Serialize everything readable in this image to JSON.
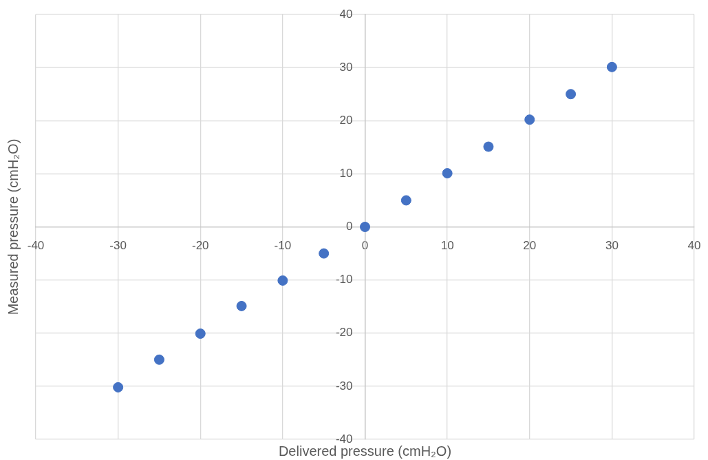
{
  "chart_data": {
    "type": "scatter",
    "xlabel": "Delivered pressure (cmH₂O)",
    "ylabel": "Measured pressure (cmH₂O)",
    "x": [
      -30,
      -25,
      -20,
      -15,
      -10,
      -5,
      0,
      5,
      10,
      15,
      20,
      25,
      30
    ],
    "series": [
      {
        "color": "#4472c4",
        "values": [
          -30.2,
          -25,
          -20.1,
          -14.9,
          -10.1,
          -5,
          0,
          5,
          10.1,
          15.1,
          20.2,
          25,
          30.1
        ]
      }
    ],
    "xlim": [
      -40,
      40
    ],
    "xticks": [
      -40,
      -30,
      -20,
      -10,
      0,
      10,
      20,
      30,
      40
    ],
    "ylim": [
      -40,
      40
    ],
    "yticks": [
      -40,
      -30,
      -20,
      -10,
      0,
      10,
      20,
      30,
      40
    ],
    "grid": true,
    "legend": false,
    "marker": "circle"
  }
}
